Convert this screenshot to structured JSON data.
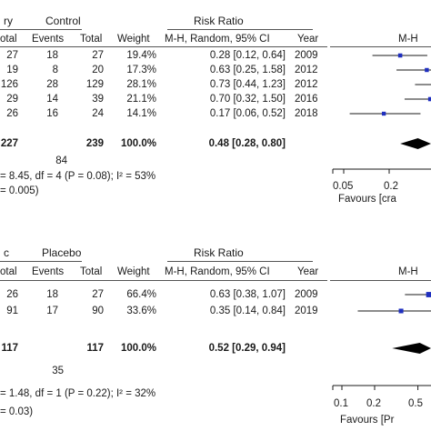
{
  "chart_data": [
    {
      "type": "forest",
      "group_header_left": "ry",
      "group_header_right": "Control",
      "effect_header": "Risk Ratio",
      "columns": [
        "otal",
        "Events",
        "Total",
        "Weight",
        "M-H, Random, 95% CI",
        "Year",
        "M-H"
      ],
      "rows": [
        {
          "total_a": "27",
          "events_b": "18",
          "total_b": "27",
          "weight": "19.4%",
          "ci_text": "0.28 [0.12, 0.64]",
          "year": "2009",
          "rr": 0.28,
          "lo": 0.12,
          "hi": 0.64,
          "w": 19.4
        },
        {
          "total_a": "19",
          "events_b": "8",
          "total_b": "20",
          "weight": "17.3%",
          "ci_text": "0.63 [0.25, 1.58]",
          "year": "2012",
          "rr": 0.63,
          "lo": 0.25,
          "hi": 1.58,
          "w": 17.3
        },
        {
          "total_a": "126",
          "events_b": "28",
          "total_b": "129",
          "weight": "28.1%",
          "ci_text": "0.73 [0.44, 1.23]",
          "year": "2012",
          "rr": 0.73,
          "lo": 0.44,
          "hi": 1.23,
          "w": 28.1
        },
        {
          "total_a": "29",
          "events_b": "14",
          "total_b": "39",
          "weight": "21.1%",
          "ci_text": "0.70 [0.32, 1.50]",
          "year": "2016",
          "rr": 0.7,
          "lo": 0.32,
          "hi": 1.5,
          "w": 21.1
        },
        {
          "total_a": "26",
          "events_b": "16",
          "total_b": "24",
          "weight": "14.1%",
          "ci_text": "0.17 [0.06, 0.52]",
          "year": "2018",
          "rr": 0.17,
          "lo": 0.06,
          "hi": 0.52,
          "w": 14.1
        }
      ],
      "total_row": {
        "total_a": "227",
        "total_b": "239",
        "weight": "100.0%",
        "ci_text": "0.48 [0.28, 0.80]",
        "rr": 0.48,
        "lo": 0.28,
        "hi": 0.8
      },
      "total_events_b": "84",
      "heterogeneity": "= 8.45, df = 4 (P = 0.08); I² = 53%",
      "overall_test": "= 0.005)",
      "axis_ticks": [
        "0.05",
        "0.2"
      ],
      "favours_label": "Favours [cra",
      "x_scale": "log"
    },
    {
      "type": "forest",
      "group_header_left": "c",
      "group_header_right": "Placebo",
      "effect_header": "Risk Ratio",
      "columns": [
        "otal",
        "Events",
        "Total",
        "Weight",
        "M-H, Random, 95% CI",
        "Year",
        "M-H"
      ],
      "rows": [
        {
          "total_a": "26",
          "events_b": "18",
          "total_b": "27",
          "weight": "66.4%",
          "ci_text": "0.63 [0.38, 1.07]",
          "year": "2009",
          "rr": 0.63,
          "lo": 0.38,
          "hi": 1.07,
          "w": 66.4
        },
        {
          "total_a": "91",
          "events_b": "17",
          "total_b": "90",
          "weight": "33.6%",
          "ci_text": "0.35 [0.14, 0.84]",
          "year": "2019",
          "rr": 0.35,
          "lo": 0.14,
          "hi": 0.84,
          "w": 33.6
        }
      ],
      "total_row": {
        "total_a": "117",
        "total_b": "117",
        "weight": "100.0%",
        "ci_text": "0.52 [0.29, 0.94]",
        "rr": 0.52,
        "lo": 0.29,
        "hi": 0.94
      },
      "total_events_b": "35",
      "heterogeneity": "= 1.48, df = 1 (P = 0.22); I² = 32%",
      "overall_test": "= 0.03)",
      "axis_ticks": [
        "0.1",
        "0.2",
        "0.5"
      ],
      "favours_label": "Favours [Pr",
      "x_scale": "log"
    }
  ],
  "colors": {
    "marker": "#1f2fbf",
    "line": "#1a1a1a",
    "diamond": "#000000"
  }
}
